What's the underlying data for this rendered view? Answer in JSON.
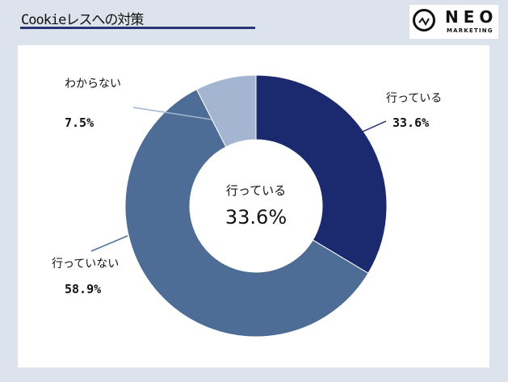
{
  "header": {
    "title": "Cookieレスへの対策",
    "logo_text": "NEO",
    "logo_sub": "MARKETING"
  },
  "chart_data": {
    "type": "pie",
    "donut": true,
    "categories": [
      "行っている",
      "行っていない",
      "わからない"
    ],
    "values": [
      33.6,
      58.9,
      7.5
    ],
    "value_labels": [
      "33.6%",
      "58.9%",
      "7.5%"
    ],
    "colors": [
      "#1b2a6e",
      "#4e6d96",
      "#a3b5d0"
    ],
    "center_label": {
      "label": "行っている",
      "value": "33.6%"
    },
    "start": "top",
    "direction": "clockwise"
  }
}
